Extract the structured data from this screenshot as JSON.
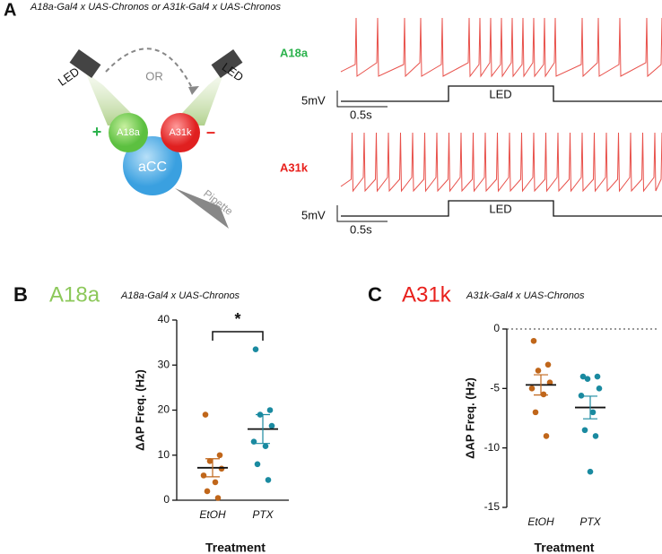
{
  "panel_a": {
    "label": "A",
    "title": "A18a-Gal4 x UAS-Chronos or A31k-Gal4 x UAS-Chronos",
    "diagram": {
      "led_left": "LED",
      "led_right": "LED",
      "or": "OR",
      "cell_a18a": "A18a",
      "cell_a31k": "A31k",
      "plus": "+",
      "minus": "–",
      "acc": "aCC",
      "pipette": "Pipette"
    },
    "traces": [
      {
        "name": "A18a",
        "color": "#2bb24c",
        "voltage_scale": "5mV",
        "time_scale": "0.5s",
        "stimulus": "LED"
      },
      {
        "name": "A31k",
        "color": "#e8201c",
        "voltage_scale": "5mV",
        "time_scale": "0.5s",
        "stimulus": "LED"
      }
    ]
  },
  "chart_data": [
    {
      "type": "scatter",
      "panel_label": "B",
      "title": "A18a",
      "title_color": "#8cc85a",
      "subtitle": "A18a-Gal4 x UAS-Chronos",
      "y_label": "ΔAP Freq. (Hz)",
      "x_label": "Treatment",
      "categories": [
        "EtOH",
        "PTX"
      ],
      "series": [
        {
          "name": "EtOH",
          "color": "#c0661a",
          "values": [
            19,
            10,
            8.7,
            7,
            5.5,
            4,
            2,
            0.5
          ]
        },
        {
          "name": "PTX",
          "color": "#1a8aa0",
          "values": [
            33.5,
            20,
            19,
            16.5,
            13,
            12,
            8,
            4.5
          ]
        }
      ],
      "means": [
        7.2,
        15.8
      ],
      "sems": [
        2,
        3.2
      ],
      "annotation": "*",
      "ylim": [
        0,
        40
      ],
      "yticks": [
        0,
        10,
        20,
        30,
        40
      ],
      "zero_line": false
    },
    {
      "type": "scatter",
      "panel_label": "C",
      "title": "A31k",
      "title_color": "#e8201c",
      "subtitle": "A31k-Gal4 x UAS-Chronos",
      "y_label": "ΔAP Freq. (Hz)",
      "x_label": "Treatment",
      "categories": [
        "EtOH",
        "PTX"
      ],
      "series": [
        {
          "name": "EtOH",
          "color": "#c0661a",
          "values": [
            -1,
            -3,
            -3.5,
            -4.5,
            -5,
            -5.5,
            -7,
            -9
          ]
        },
        {
          "name": "PTX",
          "color": "#1a8aa0",
          "values": [
            -4,
            -4,
            -4.2,
            -5,
            -5.6,
            -7,
            -8.5,
            -9,
            -12
          ]
        }
      ],
      "means": [
        -4.7,
        -6.6
      ],
      "sems": [
        0.85,
        0.95
      ],
      "ylim": [
        -15,
        0
      ],
      "yticks": [
        -15,
        -10,
        -5,
        0
      ],
      "zero_line": true
    }
  ]
}
